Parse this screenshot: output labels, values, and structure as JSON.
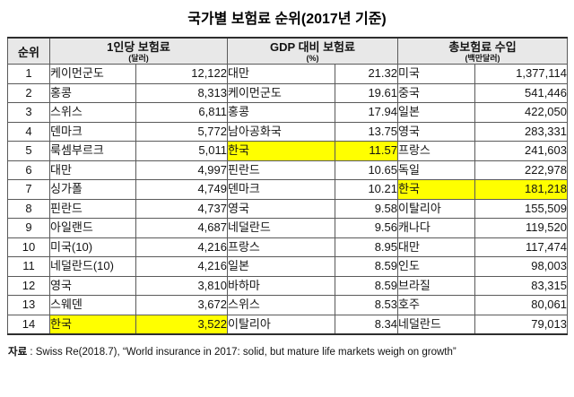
{
  "title": "국가별 보험료 순위(2017년 기준)",
  "source": {
    "label": "자료",
    "text": " : Swiss Re(2018.7), “World insurance in 2017: solid, but mature life markets weigh on growth”"
  },
  "colors": {
    "highlight": "#ffff00",
    "header_bg": "#e8e8e8",
    "border": "#5a5a5a"
  },
  "table": {
    "rank_header": "순위",
    "groups": [
      {
        "label": "1인당 보험료",
        "unit": "(달러)"
      },
      {
        "label": "GDP 대비 보험료",
        "unit": "(%)"
      },
      {
        "label": "총보험료 수입",
        "unit": "(백만달러)"
      }
    ],
    "rows": [
      {
        "rank": "1",
        "c1": "케이먼군도",
        "v1": "12,122",
        "c2": "대만",
        "v2": "21.32",
        "c3": "미국",
        "v3": "1,377,114",
        "hl": []
      },
      {
        "rank": "2",
        "c1": "홍콩",
        "v1": "8,313",
        "c2": "케이먼군도",
        "v2": "19.61",
        "c3": "중국",
        "v3": "541,446",
        "hl": []
      },
      {
        "rank": "3",
        "c1": "스위스",
        "v1": "6,811",
        "c2": "홍콩",
        "v2": "17.94",
        "c3": "일본",
        "v3": "422,050",
        "hl": []
      },
      {
        "rank": "4",
        "c1": "덴마크",
        "v1": "5,772",
        "c2": "남아공화국",
        "v2": "13.75",
        "c3": "영국",
        "v3": "283,331",
        "hl": []
      },
      {
        "rank": "5",
        "c1": "룩셈부르크",
        "v1": "5,011",
        "c2": "한국",
        "v2": "11.57",
        "c3": "프랑스",
        "v3": "241,603",
        "hl": [
          3,
          4
        ]
      },
      {
        "rank": "6",
        "c1": "대만",
        "v1": "4,997",
        "c2": "핀란드",
        "v2": "10.65",
        "c3": "독일",
        "v3": "222,978",
        "hl": []
      },
      {
        "rank": "7",
        "c1": "싱가폴",
        "v1": "4,749",
        "c2": "덴마크",
        "v2": "10.21",
        "c3": "한국",
        "v3": "181,218",
        "hl": [
          5,
          6
        ]
      },
      {
        "rank": "8",
        "c1": "핀란드",
        "v1": "4,737",
        "c2": "영국",
        "v2": "9.58",
        "c3": "이탈리아",
        "v3": "155,509",
        "hl": []
      },
      {
        "rank": "9",
        "c1": "아일랜드",
        "v1": "4,687",
        "c2": "네덜란드",
        "v2": "9.56",
        "c3": "캐나다",
        "v3": "119,520",
        "hl": []
      },
      {
        "rank": "10",
        "c1": "미국(10)",
        "v1": "4,216",
        "c2": "프랑스",
        "v2": "8.95",
        "c3": "대만",
        "v3": "117,474",
        "hl": []
      },
      {
        "rank": "11",
        "c1": "네덜란드(10)",
        "v1": "4,216",
        "c2": "일본",
        "v2": "8.59",
        "c3": "인도",
        "v3": "98,003",
        "hl": []
      },
      {
        "rank": "12",
        "c1": "영국",
        "v1": "3,810",
        "c2": "바하마",
        "v2": "8.59",
        "c3": "브라질",
        "v3": "83,315",
        "hl": []
      },
      {
        "rank": "13",
        "c1": "스웨덴",
        "v1": "3,672",
        "c2": "스위스",
        "v2": "8.53",
        "c3": "호주",
        "v3": "80,061",
        "hl": []
      },
      {
        "rank": "14",
        "c1": "한국",
        "v1": "3,522",
        "c2": "이탈리아",
        "v2": "8.34",
        "c3": "네덜란드",
        "v3": "79,013",
        "hl": [
          1,
          2
        ]
      }
    ]
  }
}
